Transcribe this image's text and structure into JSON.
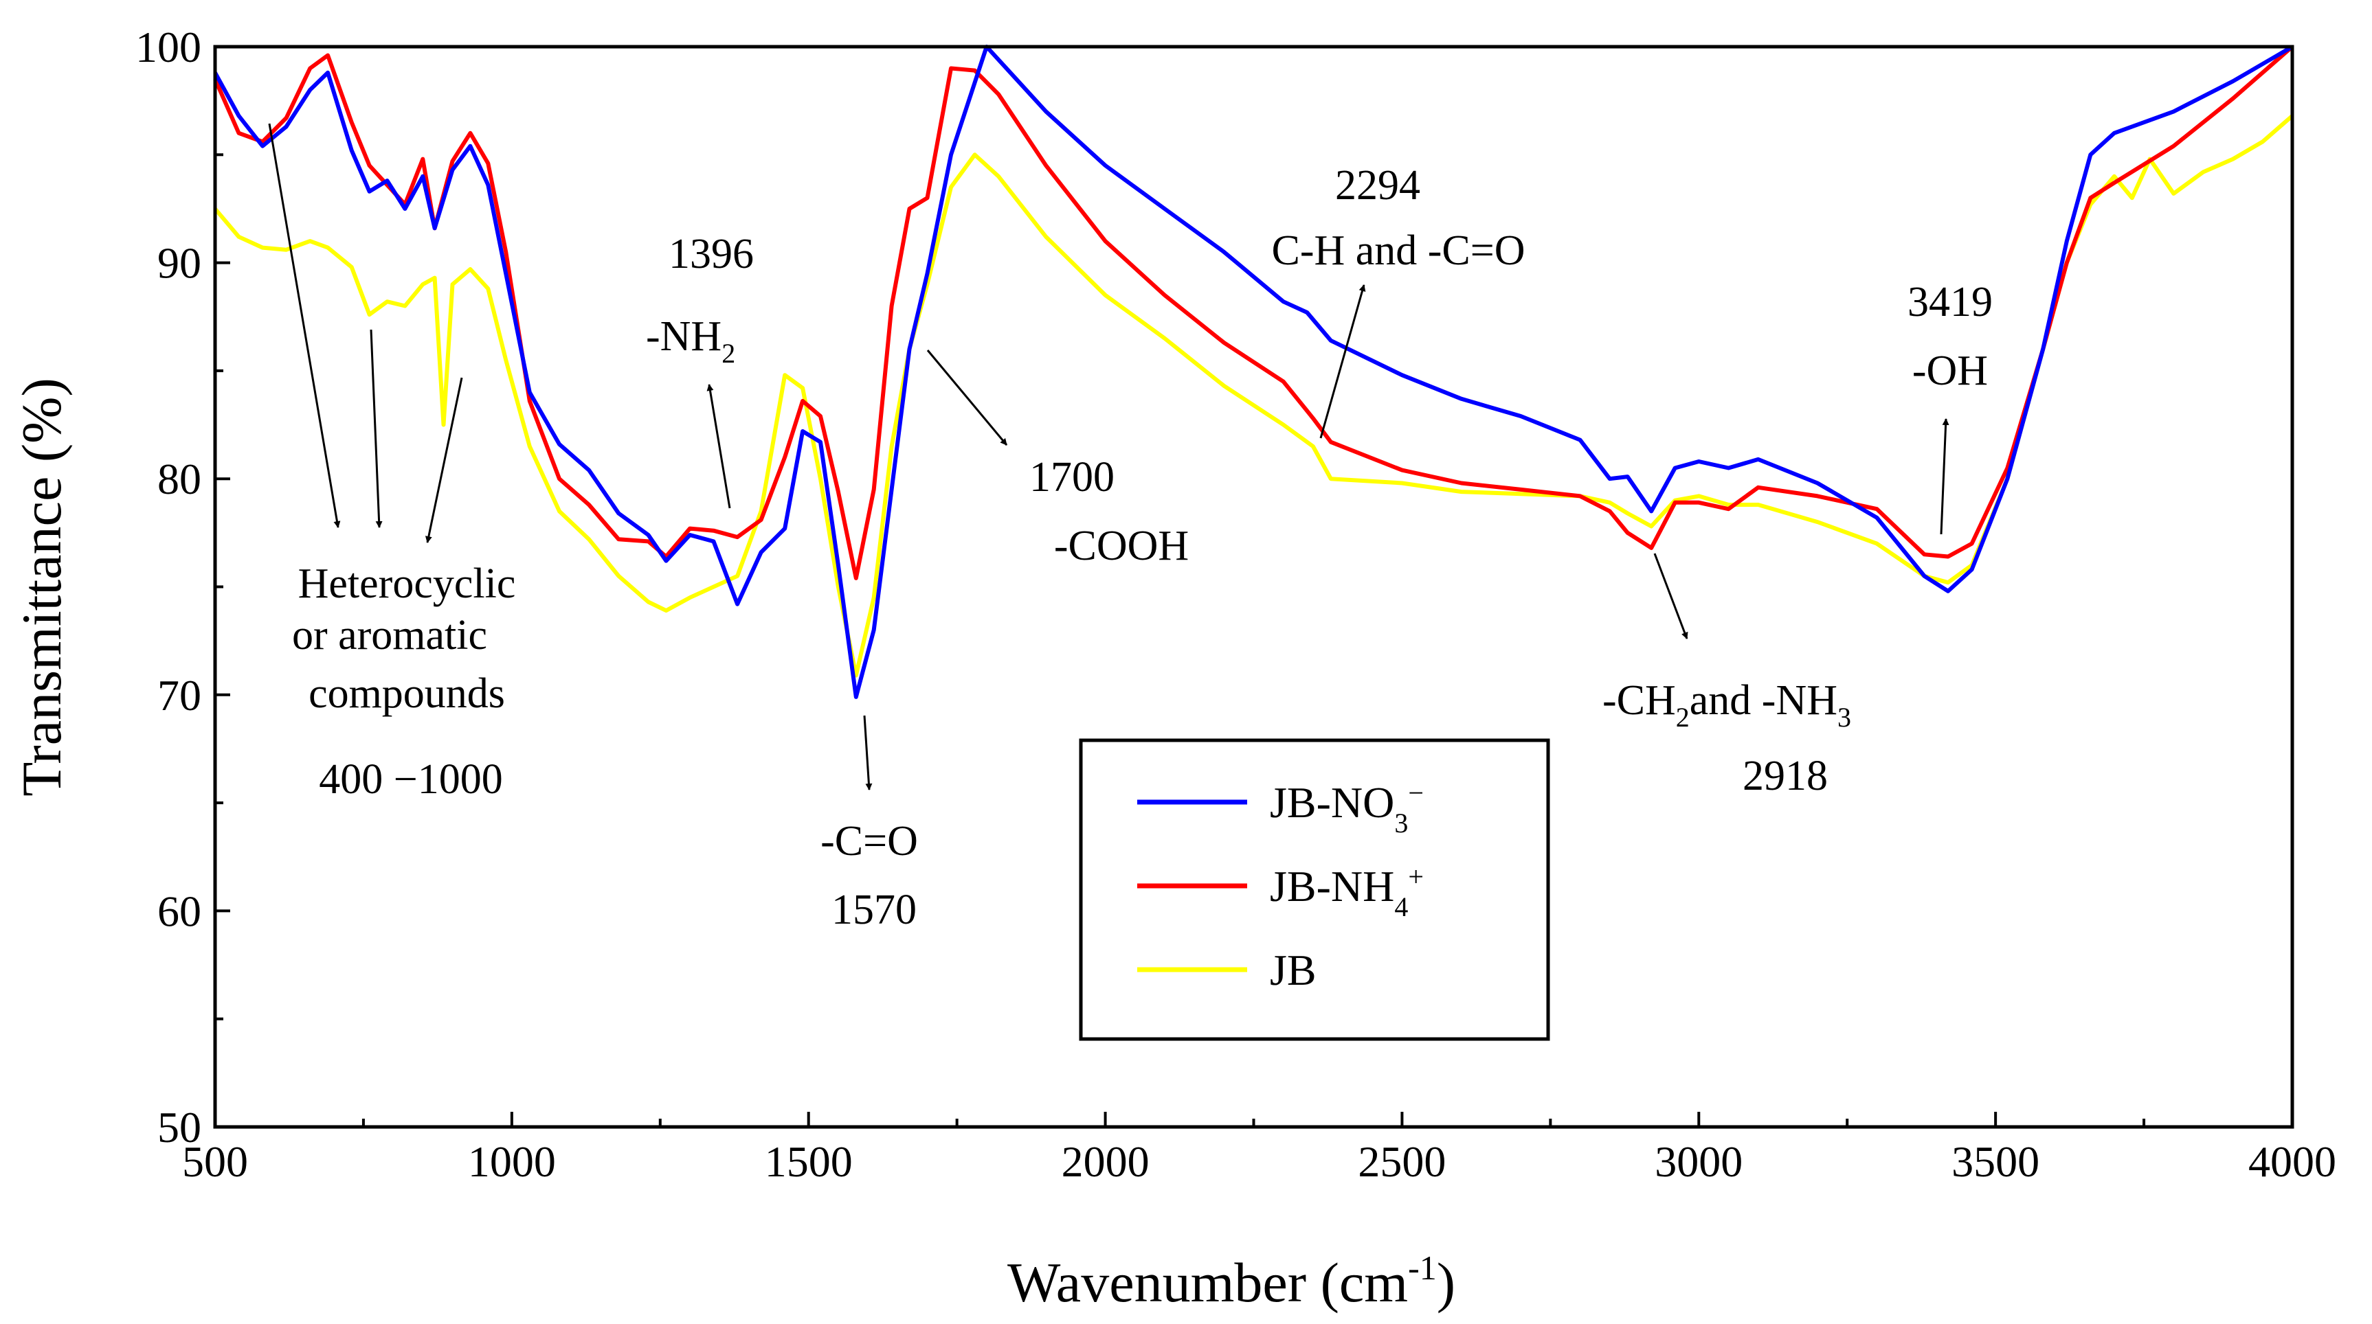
{
  "chart_data": {
    "type": "line",
    "title": "",
    "xlabel": "Wavenumber (cm",
    "xlabel_sup": "-1",
    "xlabel_close": ")",
    "ylabel": "Transmittance (%)",
    "xlim": [
      500,
      4000
    ],
    "ylim": [
      50,
      100
    ],
    "x_ticks": [
      "500",
      "1000",
      "1500",
      "2000",
      "2500",
      "3000",
      "3500",
      "4000"
    ],
    "y_ticks": [
      "50",
      "60",
      "70",
      "80",
      "90",
      "100"
    ],
    "grid": false,
    "series": [
      {
        "name": "JB-NO3-",
        "legend_main": "JB-NO",
        "legend_sub": "3",
        "legend_sup": "−",
        "color": "#0000ff",
        "points": [
          [
            500,
            98.8
          ],
          [
            540,
            96.8
          ],
          [
            580,
            95.4
          ],
          [
            620,
            96.3
          ],
          [
            660,
            98.0
          ],
          [
            690,
            98.8
          ],
          [
            730,
            95.2
          ],
          [
            760,
            93.3
          ],
          [
            790,
            93.8
          ],
          [
            820,
            92.5
          ],
          [
            850,
            94.0
          ],
          [
            870,
            91.6
          ],
          [
            900,
            94.3
          ],
          [
            930,
            95.4
          ],
          [
            960,
            93.6
          ],
          [
            990,
            89.5
          ],
          [
            1030,
            84.0
          ],
          [
            1080,
            81.6
          ],
          [
            1130,
            80.4
          ],
          [
            1180,
            78.4
          ],
          [
            1230,
            77.4
          ],
          [
            1260,
            76.2
          ],
          [
            1300,
            77.4
          ],
          [
            1340,
            77.1
          ],
          [
            1380,
            74.2
          ],
          [
            1420,
            76.6
          ],
          [
            1460,
            77.7
          ],
          [
            1490,
            82.2
          ],
          [
            1520,
            81.7
          ],
          [
            1550,
            76.0
          ],
          [
            1580,
            69.9
          ],
          [
            1610,
            73.0
          ],
          [
            1640,
            79.5
          ],
          [
            1670,
            86.0
          ],
          [
            1700,
            89.5
          ],
          [
            1740,
            95.0
          ],
          [
            1800,
            100.0
          ],
          [
            1850,
            98.5
          ],
          [
            1900,
            97.0
          ],
          [
            2000,
            94.5
          ],
          [
            2100,
            92.5
          ],
          [
            2200,
            90.5
          ],
          [
            2300,
            88.2
          ],
          [
            2340,
            87.7
          ],
          [
            2380,
            86.4
          ],
          [
            2500,
            84.8
          ],
          [
            2600,
            83.7
          ],
          [
            2700,
            82.9
          ],
          [
            2800,
            81.8
          ],
          [
            2850,
            80.0
          ],
          [
            2880,
            80.1
          ],
          [
            2920,
            78.5
          ],
          [
            2960,
            80.5
          ],
          [
            3000,
            80.8
          ],
          [
            3050,
            80.5
          ],
          [
            3100,
            80.9
          ],
          [
            3200,
            79.8
          ],
          [
            3300,
            78.2
          ],
          [
            3380,
            75.5
          ],
          [
            3420,
            74.8
          ],
          [
            3460,
            75.8
          ],
          [
            3520,
            80.0
          ],
          [
            3580,
            86.0
          ],
          [
            3620,
            91.0
          ],
          [
            3660,
            95.0
          ],
          [
            3700,
            96.0
          ],
          [
            3800,
            97.0
          ],
          [
            3900,
            98.4
          ],
          [
            4000,
            100.0
          ]
        ]
      },
      {
        "name": "JB-NH4+",
        "legend_main": "JB-NH",
        "legend_sub": "4",
        "legend_sup": "+",
        "color": "#ff0000",
        "points": [
          [
            500,
            98.5
          ],
          [
            540,
            96.0
          ],
          [
            580,
            95.6
          ],
          [
            620,
            96.7
          ],
          [
            660,
            99.0
          ],
          [
            690,
            99.6
          ],
          [
            730,
            96.5
          ],
          [
            760,
            94.5
          ],
          [
            790,
            93.6
          ],
          [
            820,
            92.7
          ],
          [
            850,
            94.8
          ],
          [
            870,
            91.6
          ],
          [
            900,
            94.7
          ],
          [
            930,
            96.0
          ],
          [
            960,
            94.6
          ],
          [
            990,
            90.5
          ],
          [
            1030,
            83.6
          ],
          [
            1080,
            80.0
          ],
          [
            1130,
            78.8
          ],
          [
            1180,
            77.2
          ],
          [
            1230,
            77.1
          ],
          [
            1260,
            76.4
          ],
          [
            1300,
            77.7
          ],
          [
            1340,
            77.6
          ],
          [
            1380,
            77.3
          ],
          [
            1420,
            78.1
          ],
          [
            1460,
            81.0
          ],
          [
            1490,
            83.6
          ],
          [
            1520,
            82.9
          ],
          [
            1550,
            79.4
          ],
          [
            1580,
            75.4
          ],
          [
            1610,
            79.5
          ],
          [
            1640,
            88.0
          ],
          [
            1670,
            92.5
          ],
          [
            1700,
            93.0
          ],
          [
            1740,
            99.0
          ],
          [
            1780,
            98.9
          ],
          [
            1820,
            97.8
          ],
          [
            1900,
            94.5
          ],
          [
            2000,
            91.0
          ],
          [
            2100,
            88.5
          ],
          [
            2200,
            86.3
          ],
          [
            2300,
            84.5
          ],
          [
            2350,
            82.8
          ],
          [
            2380,
            81.7
          ],
          [
            2500,
            80.4
          ],
          [
            2600,
            79.8
          ],
          [
            2700,
            79.5
          ],
          [
            2800,
            79.2
          ],
          [
            2850,
            78.5
          ],
          [
            2880,
            77.5
          ],
          [
            2920,
            76.8
          ],
          [
            2960,
            78.9
          ],
          [
            3000,
            78.9
          ],
          [
            3050,
            78.6
          ],
          [
            3100,
            79.6
          ],
          [
            3200,
            79.2
          ],
          [
            3300,
            78.6
          ],
          [
            3380,
            76.5
          ],
          [
            3420,
            76.4
          ],
          [
            3460,
            77.0
          ],
          [
            3520,
            80.5
          ],
          [
            3580,
            86.0
          ],
          [
            3620,
            90.0
          ],
          [
            3660,
            93.0
          ],
          [
            3700,
            93.7
          ],
          [
            3800,
            95.4
          ],
          [
            3900,
            97.6
          ],
          [
            4000,
            100.0
          ]
        ]
      },
      {
        "name": "JB",
        "legend_main": "JB",
        "legend_sub": "",
        "legend_sup": "",
        "color": "#ffff00",
        "points": [
          [
            500,
            92.5
          ],
          [
            540,
            91.2
          ],
          [
            580,
            90.7
          ],
          [
            620,
            90.6
          ],
          [
            660,
            91.0
          ],
          [
            690,
            90.7
          ],
          [
            730,
            89.8
          ],
          [
            760,
            87.6
          ],
          [
            790,
            88.2
          ],
          [
            820,
            88.0
          ],
          [
            850,
            89.0
          ],
          [
            870,
            89.3
          ],
          [
            885,
            82.5
          ],
          [
            900,
            89.0
          ],
          [
            930,
            89.7
          ],
          [
            960,
            88.8
          ],
          [
            990,
            85.5
          ],
          [
            1030,
            81.5
          ],
          [
            1080,
            78.5
          ],
          [
            1130,
            77.2
          ],
          [
            1180,
            75.5
          ],
          [
            1230,
            74.3
          ],
          [
            1260,
            73.9
          ],
          [
            1300,
            74.5
          ],
          [
            1340,
            75.0
          ],
          [
            1380,
            75.5
          ],
          [
            1420,
            78.5
          ],
          [
            1460,
            84.8
          ],
          [
            1490,
            84.2
          ],
          [
            1520,
            80.0
          ],
          [
            1550,
            75.0
          ],
          [
            1580,
            70.9
          ],
          [
            1610,
            74.5
          ],
          [
            1640,
            81.5
          ],
          [
            1670,
            86.0
          ],
          [
            1700,
            89.0
          ],
          [
            1740,
            93.5
          ],
          [
            1780,
            95.0
          ],
          [
            1820,
            94.0
          ],
          [
            1900,
            91.2
          ],
          [
            2000,
            88.5
          ],
          [
            2100,
            86.5
          ],
          [
            2200,
            84.3
          ],
          [
            2300,
            82.5
          ],
          [
            2350,
            81.5
          ],
          [
            2380,
            80.0
          ],
          [
            2500,
            79.8
          ],
          [
            2600,
            79.4
          ],
          [
            2700,
            79.3
          ],
          [
            2800,
            79.2
          ],
          [
            2850,
            78.9
          ],
          [
            2880,
            78.4
          ],
          [
            2920,
            77.8
          ],
          [
            2960,
            79.0
          ],
          [
            3000,
            79.2
          ],
          [
            3050,
            78.8
          ],
          [
            3100,
            78.8
          ],
          [
            3200,
            78.0
          ],
          [
            3300,
            77.0
          ],
          [
            3380,
            75.5
          ],
          [
            3420,
            75.2
          ],
          [
            3460,
            76.0
          ],
          [
            3520,
            80.0
          ],
          [
            3580,
            86.0
          ],
          [
            3620,
            90.0
          ],
          [
            3660,
            92.7
          ],
          [
            3700,
            94.0
          ],
          [
            3730,
            93.0
          ],
          [
            3760,
            94.8
          ],
          [
            3800,
            93.2
          ],
          [
            3850,
            94.2
          ],
          [
            3900,
            94.8
          ],
          [
            3950,
            95.6
          ],
          [
            4000,
            96.8
          ]
        ]
      }
    ],
    "annotations": [
      {
        "lines": [
          "Heterocyclic",
          "or aromatic",
          "compounds"
        ]
      },
      {
        "lines": [
          "400 −1000"
        ]
      },
      {
        "number": "1396",
        "group": "-NH",
        "sub": "2"
      },
      {
        "lines": [
          "-C=O",
          "1570"
        ]
      },
      {
        "lines": [
          "1700",
          "-COOH"
        ]
      },
      {
        "lines": [
          "2294",
          "C-H and -C=O"
        ]
      },
      {
        "part1": "-CH",
        "sub1": "2",
        "part2": "and -NH",
        "sub2": "3",
        "number": "2918"
      },
      {
        "lines": [
          "3419",
          "-OH"
        ]
      }
    ]
  }
}
